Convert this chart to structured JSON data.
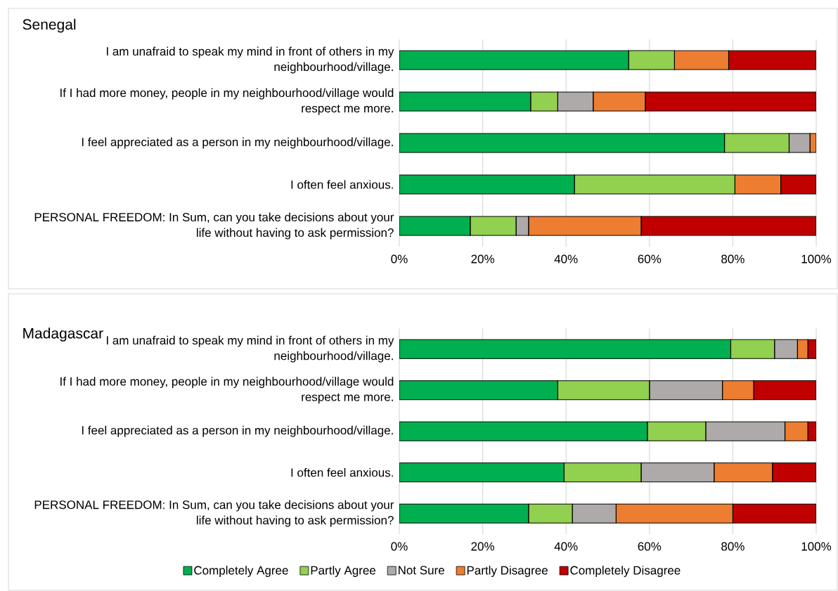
{
  "chart_data": [
    {
      "type": "bar",
      "orientation": "horizontal",
      "stacked": true,
      "title": "Senegal",
      "categories": [
        "I am unafraid to  speak my mind in front of others in my neighbourhood/village.",
        "If I had more money, people in my neighbourhood/village would respect me more.",
        "I feel appreciated as a person in my neighbourhood/village.",
        "I often feel anxious.",
        "PERSONAL FREEDOM: In Sum, can you take decisions about your life without having to ask permission?"
      ],
      "series": [
        {
          "color": "#00b050",
          "values": [
            55,
            31.5,
            78,
            42,
            17
          ]
        },
        {
          "color": "#92d050",
          "values": [
            11,
            6.5,
            15.5,
            38.5,
            11
          ]
        },
        {
          "color": "#aeaaaa",
          "values": [
            0,
            8.5,
            5,
            0,
            3
          ]
        },
        {
          "color": "#ed7d31",
          "values": [
            13,
            12.5,
            1.5,
            11,
            27
          ]
        },
        {
          "color": "#c00000",
          "values": [
            21,
            41,
            0,
            8.5,
            42
          ]
        }
      ],
      "xlim": [
        0,
        100
      ],
      "xticks": [
        {
          "value": 0,
          "label": "0%"
        },
        {
          "value": 20,
          "label": "20%"
        },
        {
          "value": 40,
          "label": "40%"
        },
        {
          "value": 60,
          "label": "60%"
        },
        {
          "value": 80,
          "label": "80%"
        },
        {
          "value": 100,
          "label": "100%"
        }
      ],
      "grid": "x",
      "legend": false
    },
    {
      "type": "bar",
      "orientation": "horizontal",
      "stacked": true,
      "title": "Madagascar",
      "categories": [
        "I am unafraid to  speak my mind in front of others in my neighbourhood/village.",
        "If I had more money, people in my neighbourhood/village would respect me more.",
        "I feel appreciated as a person in my neighbourhood/village.",
        "I often feel anxious.",
        "PERSONAL FREEDOM: In Sum, can you take decisions about your life without having to ask permission?"
      ],
      "series": [
        {
          "name": "Completely Agree",
          "color": "#00b050",
          "values": [
            79.5,
            38,
            59.5,
            39.5,
            31
          ]
        },
        {
          "name": "Partly Agree",
          "color": "#92d050",
          "values": [
            10.5,
            22,
            14,
            18.5,
            10.5
          ]
        },
        {
          "name": "Not Sure",
          "color": "#aeaaaa",
          "values": [
            5.5,
            17.5,
            19,
            17.5,
            10.5
          ]
        },
        {
          "name": "Partly Disagree",
          "color": "#ed7d31",
          "values": [
            2.5,
            7.5,
            5.5,
            14,
            28
          ]
        },
        {
          "name": "Completely Disagree",
          "color": "#c00000",
          "values": [
            2,
            15,
            2,
            10.5,
            20
          ]
        }
      ],
      "xlim": [
        0,
        100
      ],
      "xticks": [
        {
          "value": 0,
          "label": "0%"
        },
        {
          "value": 20,
          "label": "20%"
        },
        {
          "value": 40,
          "label": "40%"
        },
        {
          "value": 60,
          "label": "60%"
        },
        {
          "value": 80,
          "label": "80%"
        },
        {
          "value": 100,
          "label": "100%"
        }
      ],
      "grid": "x",
      "legend": "bottom"
    }
  ]
}
